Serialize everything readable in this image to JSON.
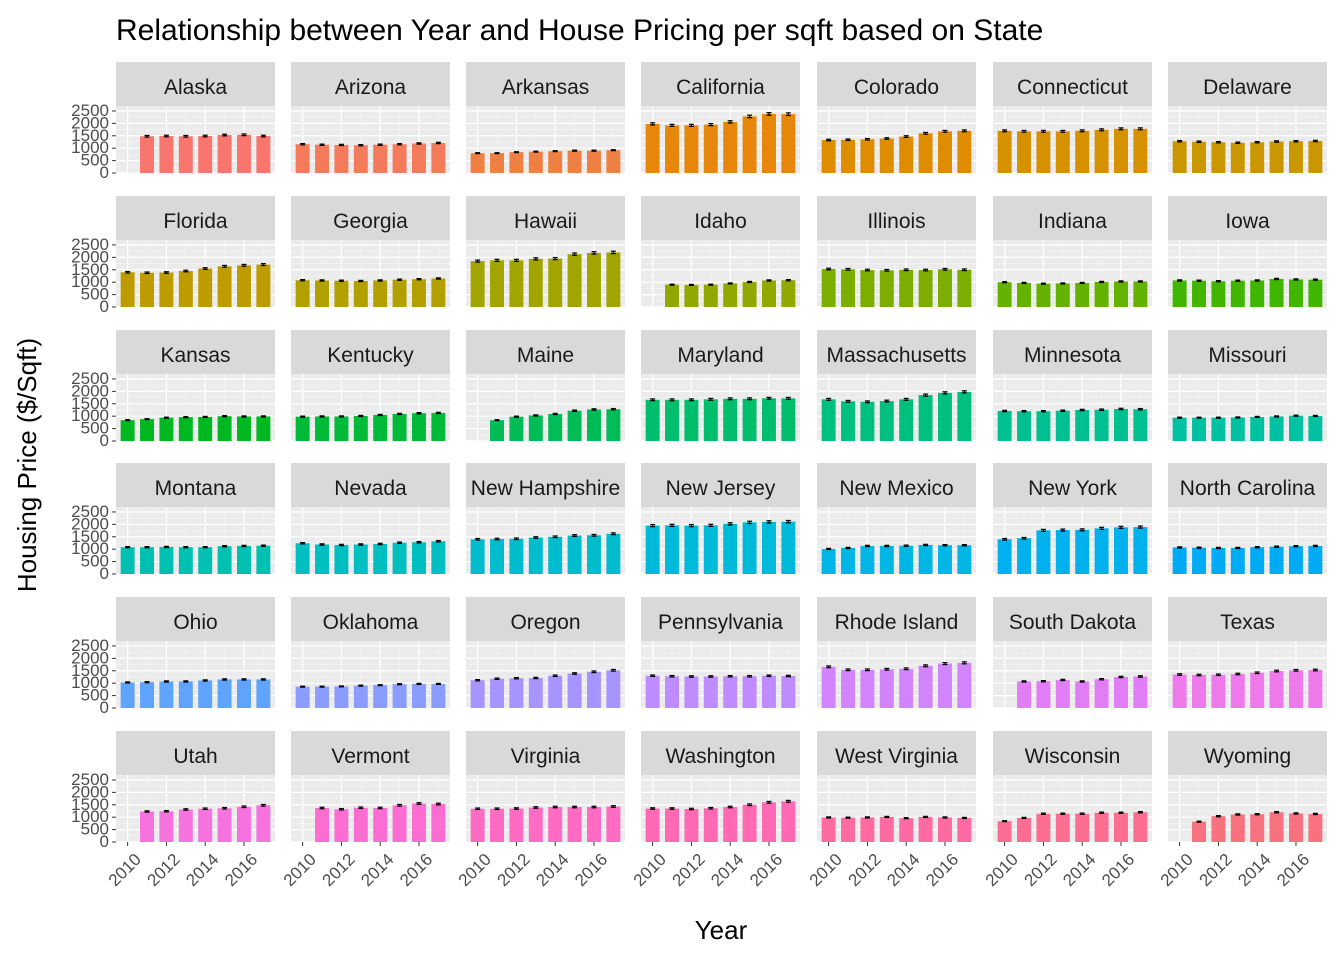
{
  "chart_data": {
    "type": "bar",
    "title": "Relationship between Year and House Pricing per sqft based on State",
    "xlabel": "Year",
    "ylabel": "Housing Price ($/Sqft)",
    "x": [
      2010,
      2011,
      2012,
      2013,
      2014,
      2015,
      2016,
      2017
    ],
    "x_ticks": [
      "2010",
      "2012",
      "2014",
      "2016"
    ],
    "y_ticks": [
      "0",
      "500",
      "1000",
      "1500",
      "2000",
      "2500"
    ],
    "ylim": [
      0,
      2700
    ],
    "grid": true,
    "legend": "none",
    "error_bars": true,
    "series": [
      {
        "name": "Alaska",
        "color": "#F8766D",
        "values": [
          null,
          1480,
          1490,
          1480,
          1490,
          1530,
          1540,
          1490
        ]
      },
      {
        "name": "Arizona",
        "color": "#F47A5C",
        "values": [
          1160,
          1140,
          1130,
          1120,
          1140,
          1160,
          1190,
          1210
        ]
      },
      {
        "name": "Arkansas",
        "color": "#EE8044",
        "values": [
          800,
          800,
          840,
          860,
          880,
          900,
          900,
          920
        ]
      },
      {
        "name": "California",
        "color": "#E6860A",
        "values": [
          1980,
          1920,
          1920,
          1950,
          2060,
          2280,
          2380,
          2370
        ]
      },
      {
        "name": "Colorado",
        "color": "#DE8C00",
        "values": [
          1330,
          1340,
          1360,
          1390,
          1470,
          1600,
          1680,
          1700
        ]
      },
      {
        "name": "Connecticut",
        "color": "#D59100",
        "values": [
          1700,
          1680,
          1680,
          1680,
          1700,
          1740,
          1780,
          1780
        ]
      },
      {
        "name": "Delaware",
        "color": "#CA9700",
        "values": [
          1280,
          1260,
          1240,
          1220,
          1240,
          1270,
          1280,
          1290
        ]
      },
      {
        "name": "Florida",
        "color": "#BE9C00",
        "values": [
          1400,
          1380,
          1390,
          1450,
          1550,
          1640,
          1680,
          1710
        ]
      },
      {
        "name": "Georgia",
        "color": "#B1A000",
        "values": [
          1080,
          1070,
          1060,
          1050,
          1070,
          1100,
          1120,
          1150
        ]
      },
      {
        "name": "Hawaii",
        "color": "#A2A500",
        "values": [
          1850,
          1880,
          1880,
          1940,
          1950,
          2130,
          2180,
          2200
        ]
      },
      {
        "name": "Idaho",
        "color": "#90A800",
        "values": [
          null,
          900,
          890,
          900,
          950,
          1010,
          1070,
          1080
        ]
      },
      {
        "name": "Illinois",
        "color": "#7CAE00",
        "values": [
          1530,
          1520,
          1490,
          1480,
          1500,
          1490,
          1520,
          1500
        ]
      },
      {
        "name": "Indiana",
        "color": "#64B200",
        "values": [
          1000,
          970,
          940,
          950,
          970,
          1010,
          1030,
          1030
        ]
      },
      {
        "name": "Iowa",
        "color": "#40B600",
        "values": [
          1070,
          1060,
          1040,
          1060,
          1070,
          1130,
          1110,
          1100
        ]
      },
      {
        "name": "Kansas",
        "color": "#00B81F",
        "values": [
          840,
          880,
          940,
          960,
          970,
          1000,
          990,
          990
        ]
      },
      {
        "name": "Kentucky",
        "color": "#00BA38",
        "values": [
          980,
          990,
          990,
          1010,
          1050,
          1090,
          1120,
          1130
        ]
      },
      {
        "name": "Maine",
        "color": "#00BC56",
        "values": [
          null,
          840,
          980,
          1030,
          1090,
          1220,
          1270,
          1280
        ]
      },
      {
        "name": "Maryland",
        "color": "#00BE6C",
        "values": [
          1660,
          1660,
          1660,
          1680,
          1700,
          1700,
          1720,
          1720
        ]
      },
      {
        "name": "Massachusetts",
        "color": "#00C080",
        "values": [
          1680,
          1600,
          1580,
          1610,
          1680,
          1850,
          1940,
          1980
        ]
      },
      {
        "name": "Minnesota",
        "color": "#00C091",
        "values": [
          1210,
          1200,
          1200,
          1220,
          1250,
          1260,
          1290,
          1280
        ]
      },
      {
        "name": "Missouri",
        "color": "#00C1A1",
        "values": [
          940,
          940,
          940,
          950,
          970,
          990,
          1020,
          1010
        ]
      },
      {
        "name": "Montana",
        "color": "#00C0B1",
        "values": [
          1080,
          1080,
          1090,
          1080,
          1080,
          1120,
          1130,
          1140
        ]
      },
      {
        "name": "Nevada",
        "color": "#00BFC0",
        "values": [
          1240,
          1190,
          1170,
          1190,
          1210,
          1260,
          1280,
          1320
        ]
      },
      {
        "name": "New Hampshire",
        "color": "#00BDCD",
        "values": [
          1400,
          1410,
          1420,
          1470,
          1500,
          1550,
          1560,
          1620
        ]
      },
      {
        "name": "New Jersey",
        "color": "#00BAD9",
        "values": [
          1950,
          1960,
          1950,
          1960,
          2020,
          2080,
          2100,
          2110
        ]
      },
      {
        "name": "New Mexico",
        "color": "#00B6E4",
        "values": [
          1010,
          1050,
          1130,
          1130,
          1140,
          1170,
          1160,
          1160
        ]
      },
      {
        "name": "New York",
        "color": "#00B1EE",
        "values": [
          1400,
          1440,
          1760,
          1770,
          1780,
          1840,
          1880,
          1890
        ]
      },
      {
        "name": "North Carolina",
        "color": "#00ABF6",
        "values": [
          1070,
          1060,
          1050,
          1050,
          1080,
          1100,
          1120,
          1130
        ]
      },
      {
        "name": "Ohio",
        "color": "#5FA4FC",
        "values": [
          1030,
          1040,
          1070,
          1070,
          1110,
          1150,
          1150,
          1150
        ]
      },
      {
        "name": "Oklahoma",
        "color": "#8B9CFF",
        "values": [
          860,
          860,
          870,
          900,
          920,
          960,
          970,
          970
        ]
      },
      {
        "name": "Oregon",
        "color": "#A894FF",
        "values": [
          1120,
          1180,
          1200,
          1210,
          1300,
          1390,
          1460,
          1520
        ]
      },
      {
        "name": "Pennsylvania",
        "color": "#BF8CFF",
        "values": [
          1300,
          1280,
          1270,
          1270,
          1280,
          1280,
          1300,
          1290
        ]
      },
      {
        "name": "Rhode Island",
        "color": "#D284FC",
        "values": [
          1660,
          1540,
          1540,
          1560,
          1580,
          1700,
          1790,
          1820
        ]
      },
      {
        "name": "South Dakota",
        "color": "#E27EF5",
        "values": [
          null,
          1070,
          1080,
          1130,
          1070,
          1160,
          1250,
          1270
        ]
      },
      {
        "name": "Texas",
        "color": "#EE79EA",
        "values": [
          1350,
          1330,
          1340,
          1370,
          1420,
          1490,
          1520,
          1530
        ]
      },
      {
        "name": "Utah",
        "color": "#F672DF",
        "values": [
          null,
          1230,
          1240,
          1310,
          1340,
          1360,
          1420,
          1480
        ]
      },
      {
        "name": "Vermont",
        "color": "#FC6DD2",
        "values": [
          null,
          1370,
          1320,
          1380,
          1370,
          1480,
          1550,
          1530
        ]
      },
      {
        "name": "Virginia",
        "color": "#FE6BC3",
        "values": [
          1340,
          1340,
          1350,
          1390,
          1410,
          1410,
          1410,
          1430
        ]
      },
      {
        "name": "Washington",
        "color": "#FF69B3",
        "values": [
          1350,
          1350,
          1330,
          1360,
          1410,
          1500,
          1600,
          1640
        ]
      },
      {
        "name": "West Virginia",
        "color": "#FF6AA3",
        "values": [
          990,
          980,
          990,
          1010,
          960,
          1010,
          990,
          970
        ]
      },
      {
        "name": "Wisconsin",
        "color": "#FC6D92",
        "values": [
          840,
          970,
          1140,
          1140,
          1140,
          1180,
          1180,
          1200
        ]
      },
      {
        "name": "Wyoming",
        "color": "#F8717F",
        "values": [
          null,
          820,
          1040,
          1110,
          1120,
          1200,
          1150,
          1130
        ]
      }
    ]
  }
}
